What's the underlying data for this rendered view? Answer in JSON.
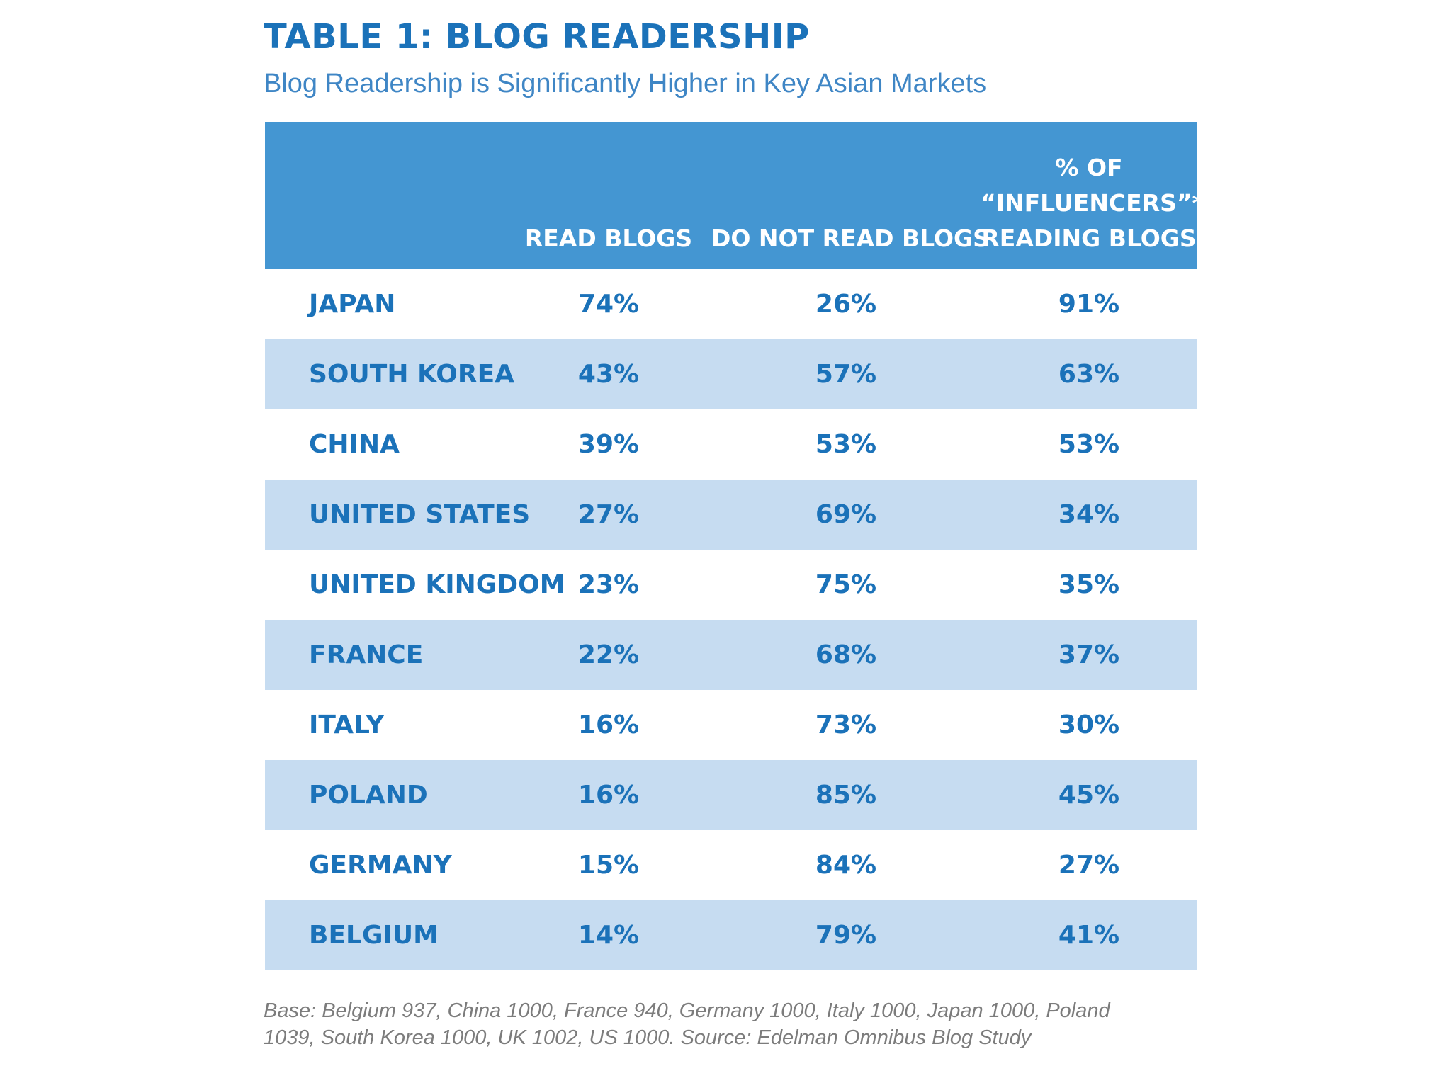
{
  "chart_data": {
    "type": "table",
    "title": "TABLE 1: BLOG READERSHIP",
    "subtitle": "Blog Readership is Significantly Higher in Key Asian Markets",
    "columns": [
      "",
      "READ BLOGS",
      "DO NOT READ BLOGS",
      [
        "% OF",
        "“INFLUENCERS”*",
        "READING BLOGS"
      ]
    ],
    "rows": [
      {
        "country": "JAPAN",
        "read": "74%",
        "not_read": "26%",
        "influencers": "91%"
      },
      {
        "country": "SOUTH KOREA",
        "read": "43%",
        "not_read": "57%",
        "influencers": "63%"
      },
      {
        "country": "CHINA",
        "read": "39%",
        "not_read": "53%",
        "influencers": "53%"
      },
      {
        "country": "UNITED STATES",
        "read": "27%",
        "not_read": "69%",
        "influencers": "34%"
      },
      {
        "country": "UNITED KINGDOM",
        "read": "23%",
        "not_read": "75%",
        "influencers": "35%"
      },
      {
        "country": "FRANCE",
        "read": "22%",
        "not_read": "68%",
        "influencers": "37%"
      },
      {
        "country": "ITALY",
        "read": "16%",
        "not_read": "73%",
        "influencers": "30%"
      },
      {
        "country": "POLAND",
        "read": "16%",
        "not_read": "85%",
        "influencers": "45%"
      },
      {
        "country": "GERMANY",
        "read": "15%",
        "not_read": "84%",
        "influencers": "27%"
      },
      {
        "country": "BELGIUM",
        "read": "14%",
        "not_read": "79%",
        "influencers": "41%"
      }
    ],
    "footnote": [
      "Base: Belgium 937, China 1000, France 940, Germany 1000, Italy 1000, Japan 1000, Poland",
      "1039, South Korea 1000, UK 1002, US 1000. Source: Edelman Omnibus Blog Study"
    ]
  },
  "colors": {
    "title": "#1b72b9",
    "subtitle": "#3f86c5",
    "header_bg": "#4496d2",
    "header_text": "#ffffff",
    "row_shaded": "#c6dcf1",
    "row_plain": "#ffffff",
    "cell_text": "#1b72b9",
    "footnote": "#7c7c7c"
  }
}
